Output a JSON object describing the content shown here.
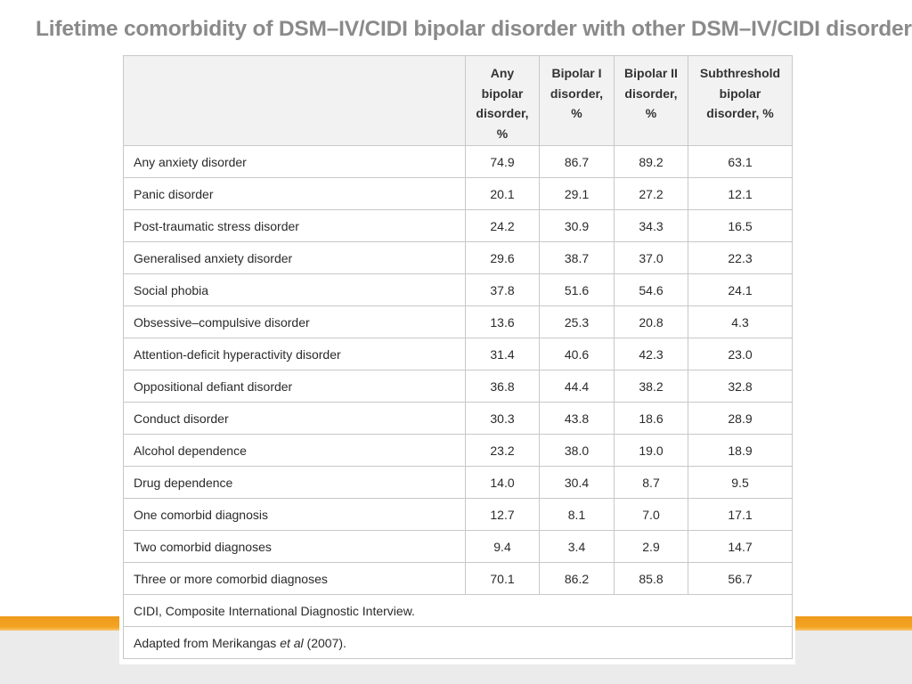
{
  "title": "Lifetime comorbidity of DSM–IV/CIDI bipolar disorder with other DSM–IV/CIDI disorders",
  "table": {
    "columns": [
      {
        "lines": [
          "Any",
          "bipolar",
          "disorder,",
          "%"
        ]
      },
      {
        "lines": [
          "Bipolar I",
          "disorder,",
          "%"
        ]
      },
      {
        "lines": [
          "Bipolar II",
          "disorder,",
          "%"
        ]
      },
      {
        "lines": [
          "Subthreshold",
          "bipolar",
          "disorder, %"
        ]
      }
    ],
    "rows": [
      {
        "label": "Any anxiety disorder",
        "values": [
          "74.9",
          "86.7",
          "89.2",
          "63.1"
        ]
      },
      {
        "label": "Panic disorder",
        "values": [
          "20.1",
          "29.1",
          "27.2",
          "12.1"
        ]
      },
      {
        "label": "Post-traumatic stress disorder",
        "values": [
          "24.2",
          "30.9",
          "34.3",
          "16.5"
        ]
      },
      {
        "label": "Generalised anxiety disorder",
        "values": [
          "29.6",
          "38.7",
          "37.0",
          "22.3"
        ]
      },
      {
        "label": "Social phobia",
        "values": [
          "37.8",
          "51.6",
          "54.6",
          "24.1"
        ]
      },
      {
        "label": "Obsessive–compulsive disorder",
        "values": [
          "13.6",
          "25.3",
          "20.8",
          "4.3"
        ]
      },
      {
        "label": "Attention-deficit hyperactivity disorder",
        "values": [
          "31.4",
          "40.6",
          "42.3",
          "23.0"
        ]
      },
      {
        "label": "Oppositional defiant disorder",
        "values": [
          "36.8",
          "44.4",
          "38.2",
          "32.8"
        ]
      },
      {
        "label": "Conduct disorder",
        "values": [
          "30.3",
          "43.8",
          "18.6",
          "28.9"
        ]
      },
      {
        "label": "Alcohol dependence",
        "values": [
          "23.2",
          "38.0",
          "19.0",
          "18.9"
        ]
      },
      {
        "label": "Drug dependence",
        "values": [
          "14.0",
          "30.4",
          "8.7",
          "9.5"
        ]
      },
      {
        "label": "One comorbid diagnosis",
        "values": [
          "12.7",
          "8.1",
          "7.0",
          "17.1"
        ]
      },
      {
        "label": "Two comorbid diagnoses",
        "values": [
          "9.4",
          "3.4",
          "2.9",
          "14.7"
        ]
      },
      {
        "label": "Three or more comorbid diagnoses",
        "values": [
          "70.1",
          "86.2",
          "85.8",
          "56.7"
        ]
      }
    ],
    "footnotes": {
      "abbreviation": "CIDI, Composite International Diagnostic Interview.",
      "source_prefix": "Adapted from Merikangas ",
      "source_italic": "et al",
      "source_suffix": " (2007)."
    }
  },
  "colors": {
    "title": "#8a8a8a",
    "accent_stripe": "#f5a623",
    "bottom_band": "#ebebeb",
    "grid": "#c8c8c8"
  }
}
